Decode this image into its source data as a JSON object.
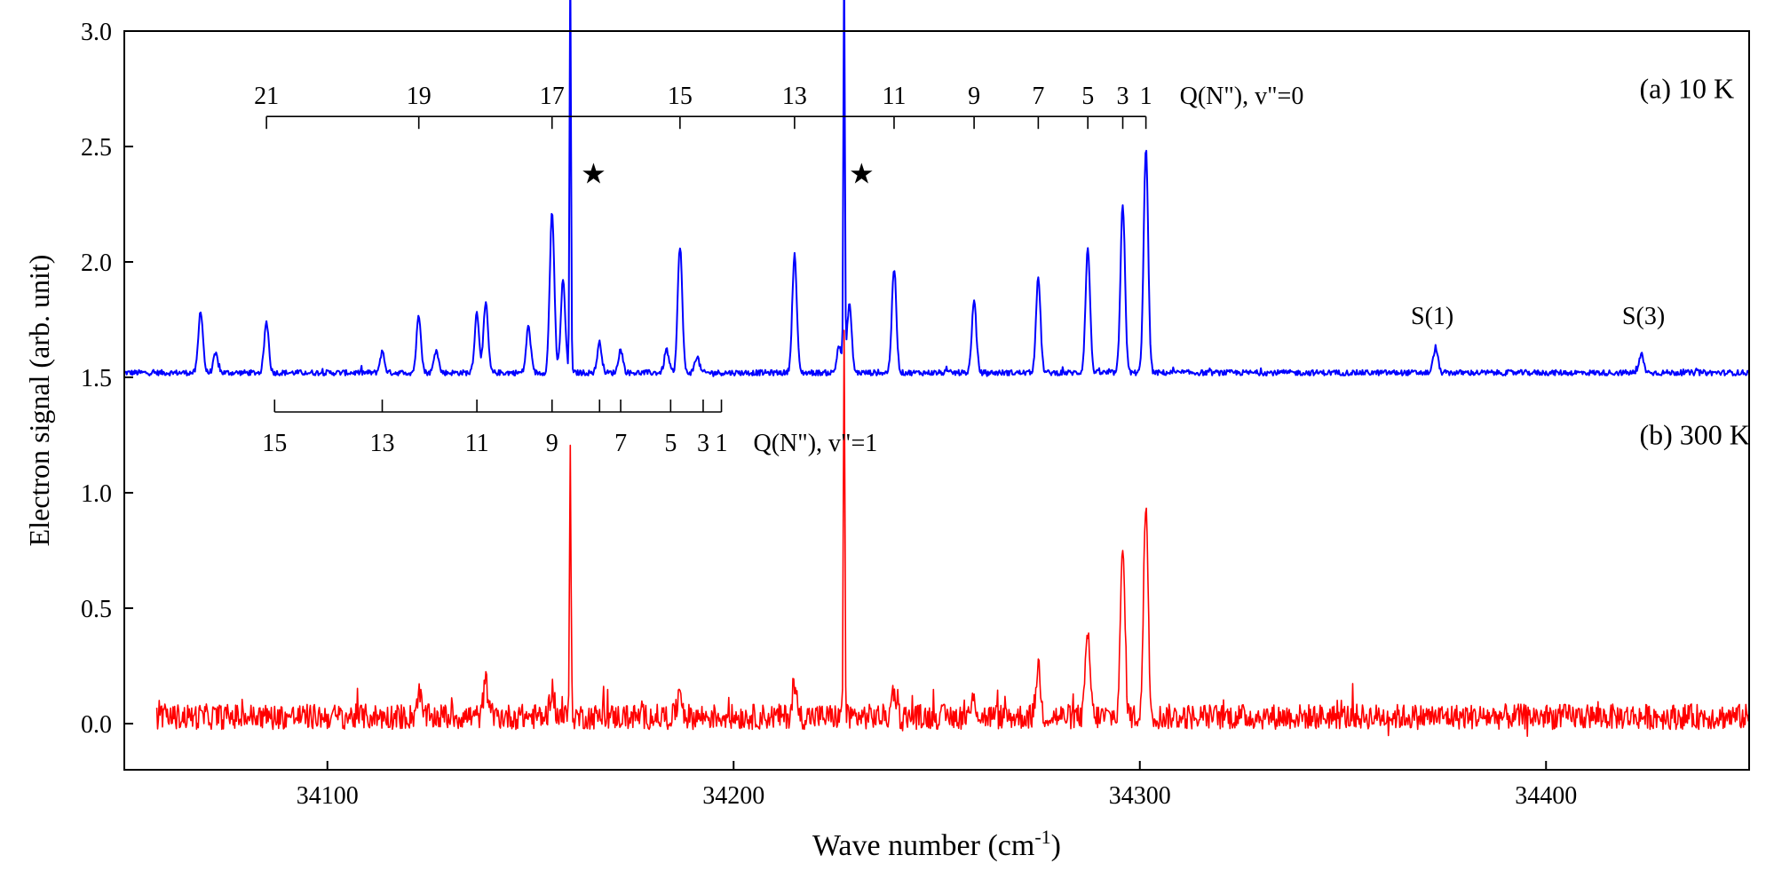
{
  "chart_data": {
    "type": "line",
    "title": "",
    "xlabel": "Wave number (cm",
    "xlabel_sup": "-1",
    "xlabel_close": ")",
    "ylabel": "Electron signal (arb. unit)",
    "xlim": [
      34050,
      34450
    ],
    "ylim": [
      -0.2,
      3.0
    ],
    "x_ticks": [
      34100,
      34200,
      34300,
      34400
    ],
    "x_tick_labels": [
      "34100",
      "34200",
      "34300",
      "34400"
    ],
    "y_ticks": [
      0.0,
      0.5,
      1.0,
      1.5,
      2.0,
      2.5,
      3.0
    ],
    "y_tick_labels": [
      "0.0",
      "0.5",
      "1.0",
      "1.5",
      "2.0",
      "2.5",
      "3.0"
    ],
    "series": [
      {
        "name": "(a) 10 K",
        "color": "#0000ff",
        "baseline": 1.52,
        "x_start": 34050,
        "x_end": 34450,
        "peaks": [
          {
            "x": 34068.8,
            "h": 0.27
          },
          {
            "x": 34072.5,
            "h": 0.08
          },
          {
            "x": 34085.0,
            "h": 0.22
          },
          {
            "x": 34113.5,
            "h": 0.09
          },
          {
            "x": 34122.5,
            "h": 0.25
          },
          {
            "x": 34126.8,
            "h": 0.1
          },
          {
            "x": 34136.8,
            "h": 0.26
          },
          {
            "x": 34139.0,
            "h": 0.3
          },
          {
            "x": 34149.5,
            "h": 0.2
          },
          {
            "x": 34155.3,
            "h": 0.7
          },
          {
            "x": 34158.0,
            "h": 0.4
          },
          {
            "x": 34159.8,
            "h": 1.8
          },
          {
            "x": 34167.0,
            "h": 0.13
          },
          {
            "x": 34172.2,
            "h": 0.1
          },
          {
            "x": 34183.5,
            "h": 0.1
          },
          {
            "x": 34186.8,
            "h": 0.55
          },
          {
            "x": 34191.0,
            "h": 0.07
          },
          {
            "x": 34215.0,
            "h": 0.51
          },
          {
            "x": 34226.0,
            "h": 0.12
          },
          {
            "x": 34227.2,
            "h": 1.8
          },
          {
            "x": 34228.5,
            "h": 0.3
          },
          {
            "x": 34239.5,
            "h": 0.45
          },
          {
            "x": 34259.2,
            "h": 0.31
          },
          {
            "x": 34275.0,
            "h": 0.41
          },
          {
            "x": 34287.2,
            "h": 0.54
          },
          {
            "x": 34295.8,
            "h": 0.73
          },
          {
            "x": 34301.5,
            "h": 0.97
          },
          {
            "x": 34372.8,
            "h": 0.11
          },
          {
            "x": 34423.5,
            "h": 0.08
          }
        ]
      },
      {
        "name": "(b) 300 K",
        "color": "#ff0000",
        "baseline": 0.03,
        "x_start": 34058,
        "x_end": 34450,
        "peaks": [
          {
            "x": 34122.5,
            "h": 0.1
          },
          {
            "x": 34139.0,
            "h": 0.15
          },
          {
            "x": 34155.3,
            "h": 0.12
          },
          {
            "x": 34159.8,
            "h": 1.2
          },
          {
            "x": 34186.8,
            "h": 0.12
          },
          {
            "x": 34215.0,
            "h": 0.13
          },
          {
            "x": 34227.2,
            "h": 1.7
          },
          {
            "x": 34239.5,
            "h": 0.12
          },
          {
            "x": 34259.2,
            "h": 0.08
          },
          {
            "x": 34275.0,
            "h": 0.22
          },
          {
            "x": 34287.2,
            "h": 0.36
          },
          {
            "x": 34295.8,
            "h": 0.72
          },
          {
            "x": 34301.5,
            "h": 0.93
          }
        ]
      }
    ],
    "combs": [
      {
        "name": "Q(N\"), v\"=0",
        "label": "Q(N\"), v\"=0",
        "y_level": 2.63,
        "direction": "down",
        "x_from": 34085.0,
        "x_to": 34301.5,
        "ticks": [
          {
            "x": 34085.0,
            "label": "21"
          },
          {
            "x": 34122.5,
            "label": "19"
          },
          {
            "x": 34155.3,
            "label": "17"
          },
          {
            "x": 34186.8,
            "label": "15"
          },
          {
            "x": 34215.0,
            "label": "13"
          },
          {
            "x": 34239.5,
            "label": "11"
          },
          {
            "x": 34259.2,
            "label": "9"
          },
          {
            "x": 34275.0,
            "label": "7"
          },
          {
            "x": 34287.2,
            "label": "5"
          },
          {
            "x": 34295.8,
            "label": "3"
          },
          {
            "x": 34301.5,
            "label": "1"
          }
        ]
      },
      {
        "name": "Q(N\"), v\"=1",
        "label": "Q(N\"), v\"=1",
        "y_level": 1.35,
        "direction": "up",
        "x_from": 34087.0,
        "x_to": 34197.0,
        "ticks": [
          {
            "x": 34087.0,
            "label": "15"
          },
          {
            "x": 34113.5,
            "label": "13"
          },
          {
            "x": 34136.8,
            "label": "11"
          },
          {
            "x": 34155.3,
            "label": "9"
          },
          {
            "x": 34167.0,
            "label": ""
          },
          {
            "x": 34172.2,
            "label": "7"
          },
          {
            "x": 34184.5,
            "label": "5"
          },
          {
            "x": 34192.5,
            "label": "3"
          },
          {
            "x": 34197.0,
            "label": "1"
          }
        ]
      }
    ],
    "annotations": [
      {
        "text": "(a) 10 K",
        "x": 34423,
        "y": 2.71
      },
      {
        "text": "(b) 300 K",
        "x": 34423,
        "y": 1.21
      },
      {
        "text": "S(1)",
        "x": 34372,
        "y": 1.73
      },
      {
        "text": "S(3)",
        "x": 34424,
        "y": 1.73
      }
    ],
    "markers": [
      {
        "symbol": "★",
        "x": 34165.5,
        "y": 2.34
      },
      {
        "symbol": "★",
        "x": 34231.5,
        "y": 2.34
      }
    ]
  }
}
